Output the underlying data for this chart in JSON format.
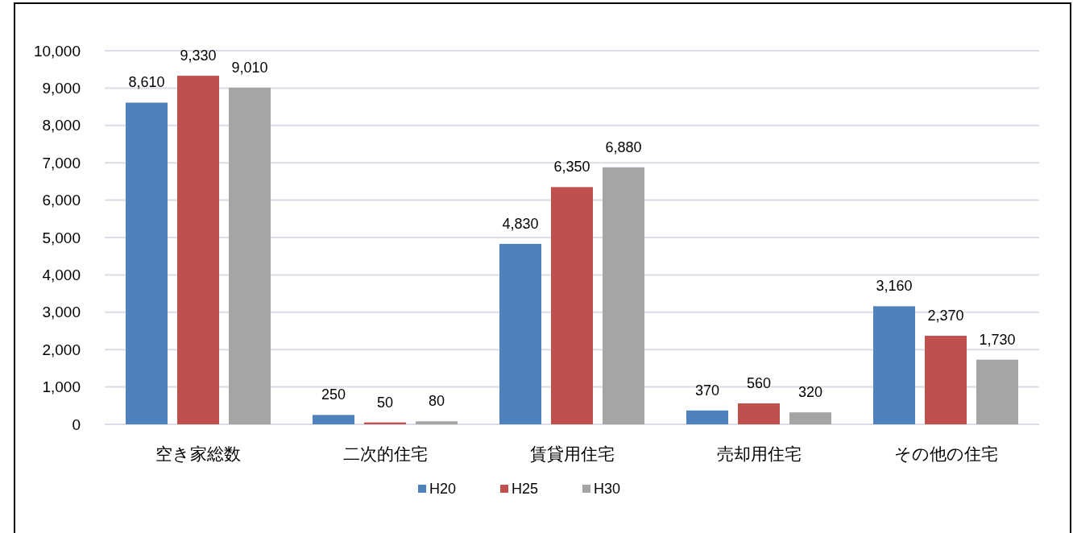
{
  "chart_data": {
    "type": "bar",
    "categories": [
      "空き家総数",
      "二次的住宅",
      "賃貸用住宅",
      "売却用住宅",
      "その他の住宅"
    ],
    "series": [
      {
        "name": "H20",
        "color": "#4f81bd",
        "values": [
          8610,
          250,
          4830,
          370,
          3160
        ],
        "value_labels": [
          "8,610",
          "250",
          "4,830",
          "370",
          "3,160"
        ]
      },
      {
        "name": "H25",
        "color": "#c0504d",
        "values": [
          9330,
          50,
          6350,
          560,
          2370
        ],
        "value_labels": [
          "9,330",
          "50",
          "6,350",
          "560",
          "2,370"
        ]
      },
      {
        "name": "H30",
        "color": "#a5a5a5",
        "values": [
          9010,
          80,
          6880,
          320,
          1730
        ],
        "value_labels": [
          "9,010",
          "80",
          "6,880",
          "320",
          "1,730"
        ]
      }
    ],
    "ylim": [
      0,
      10000
    ],
    "yticks": [
      0,
      {
        "value": 1000,
        "label": "1,000"
      },
      {
        "value": 2000,
        "label": "2,000"
      },
      {
        "value": 3000,
        "label": "3,000"
      },
      {
        "value": 4000,
        "label": "4,000"
      },
      {
        "value": 5000,
        "label": "5,000"
      },
      {
        "value": 6000,
        "label": "6,000"
      },
      {
        "value": 7000,
        "label": "7,000"
      },
      {
        "value": 8000,
        "label": "8,000"
      },
      {
        "value": 9000,
        "label": "9,000"
      },
      {
        "value": 10000,
        "label": "10,000"
      }
    ],
    "grid": "y",
    "legend": "bottom"
  }
}
